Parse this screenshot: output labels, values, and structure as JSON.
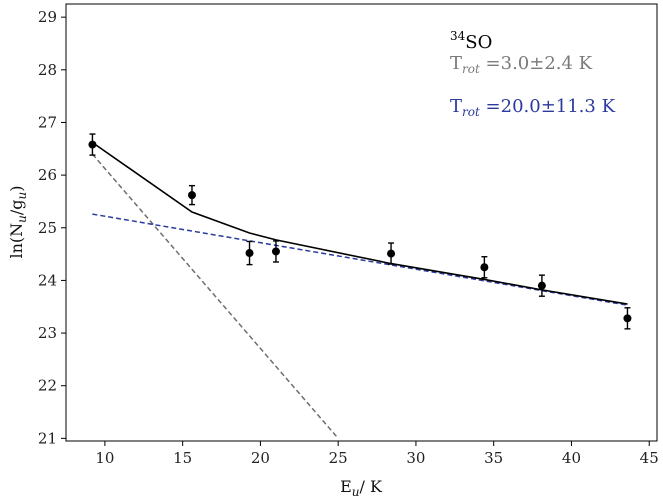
{
  "chart_data": {
    "type": "scatter",
    "xlabel": {
      "base": "E",
      "sub": "u",
      "rest": "/ K"
    },
    "ylabel": {
      "pre": "ln(N",
      "sub1": "u",
      "mid": "/g",
      "sub2": "u",
      "post": ")"
    },
    "xlim": [
      7.5,
      45.5
    ],
    "ylim": [
      20.95,
      29.25
    ],
    "xticks": [
      10,
      15,
      20,
      25,
      30,
      35,
      40,
      45
    ],
    "yticks": [
      21,
      22,
      23,
      24,
      25,
      26,
      27,
      28,
      29
    ],
    "points": [
      {
        "x": 9.2,
        "y": 26.58,
        "err": 0.2
      },
      {
        "x": 15.6,
        "y": 25.62,
        "err": 0.18
      },
      {
        "x": 19.3,
        "y": 24.52,
        "err": 0.22
      },
      {
        "x": 21.0,
        "y": 24.55,
        "err": 0.2
      },
      {
        "x": 28.4,
        "y": 24.51,
        "err": 0.2
      },
      {
        "x": 34.4,
        "y": 24.25,
        "err": 0.2
      },
      {
        "x": 38.1,
        "y": 23.9,
        "err": 0.2
      },
      {
        "x": 43.6,
        "y": 23.28,
        "err": 0.2
      }
    ],
    "total_fit": {
      "color": "#000000",
      "x": [
        9.2,
        15.6,
        19.3,
        21.0,
        28.4,
        34.4,
        38.1,
        43.6
      ],
      "y": [
        26.62,
        25.3,
        24.9,
        24.77,
        24.32,
        24.02,
        23.82,
        23.55
      ]
    },
    "components": [
      {
        "color": "#6e6e6e",
        "style": "dashed",
        "x": [
          9.2,
          25.0
        ],
        "y": [
          26.4,
          21.0
        ]
      },
      {
        "color": "#2b3a9e",
        "style": "dashed",
        "x": [
          9.2,
          43.6
        ],
        "y": [
          25.26,
          23.53
        ]
      }
    ],
    "annotations": {
      "molecule": {
        "sup": "34",
        "base": "SO",
        "color": "#000000"
      },
      "trot_cold": {
        "base": "T",
        "sub": "rot",
        "value": " =3.0±2.4 K",
        "color": "#7a7a7a"
      },
      "trot_warm": {
        "base": "T",
        "sub": "rot",
        "value": " =20.0±11.3 K",
        "color": "#2b3a9e"
      }
    }
  }
}
